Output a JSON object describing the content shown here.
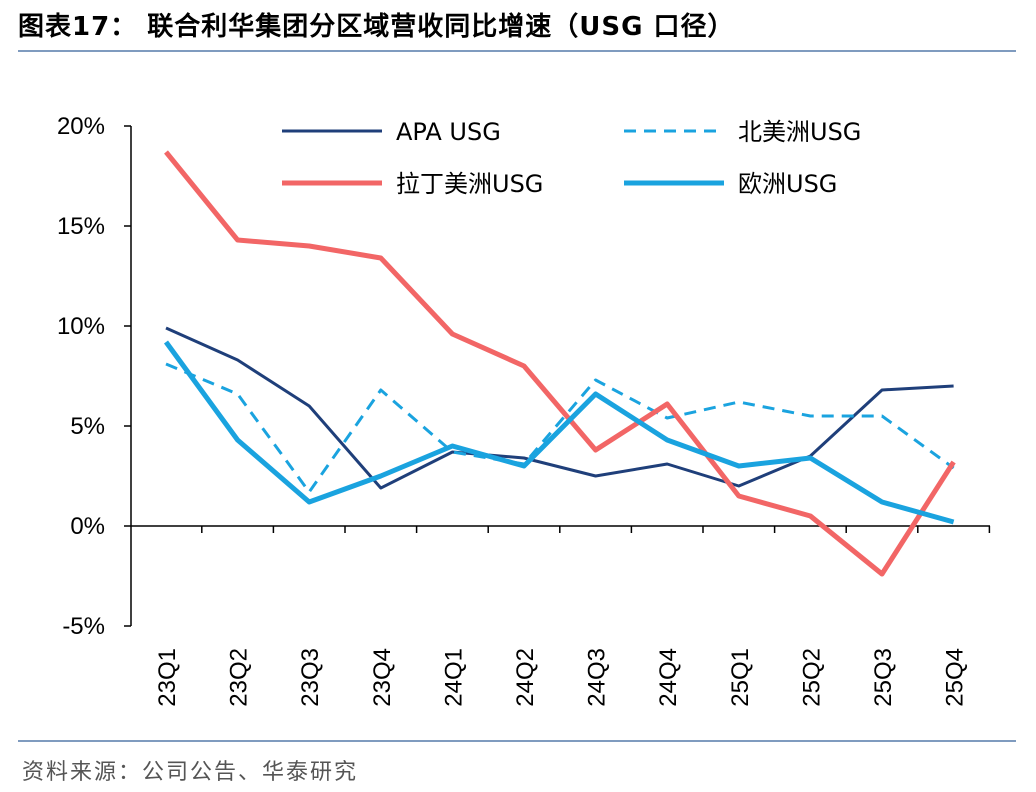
{
  "header": {
    "title": "图表17：  联合利华集团分区域营收同比增速（USG 口径）"
  },
  "footer": {
    "source": "资料来源：公司公告、华泰研究"
  },
  "chart_data": {
    "type": "line",
    "title": "联合利华集团分区域营收同比增速（USG 口径）",
    "xlabel": "",
    "ylabel": "",
    "ylim": [
      -5,
      20
    ],
    "yticks": [
      -5,
      0,
      5,
      10,
      15,
      20
    ],
    "ytick_labels": [
      "-5%",
      "0%",
      "5%",
      "10%",
      "15%",
      "20%"
    ],
    "categories": [
      "23Q1",
      "23Q2",
      "23Q3",
      "23Q4",
      "24Q1",
      "24Q2",
      "24Q3",
      "24Q4",
      "25Q1",
      "25Q2",
      "25Q3",
      "25Q4"
    ],
    "series": [
      {
        "name": "APA USG",
        "color": "#1f3f7a",
        "style": "solid",
        "width": "thin",
        "values": [
          9.9,
          8.3,
          6.0,
          1.9,
          3.7,
          3.4,
          2.5,
          3.1,
          2.0,
          3.5,
          6.8,
          7.0
        ]
      },
      {
        "name": "北美洲USG",
        "color": "#1aa3df",
        "style": "dashed",
        "width": "thin",
        "values": [
          8.1,
          6.6,
          1.7,
          6.8,
          3.7,
          3.1,
          7.3,
          5.4,
          6.2,
          5.5,
          5.5,
          2.9
        ]
      },
      {
        "name": "拉丁美洲USG",
        "color": "#f26666",
        "style": "solid",
        "width": "thick",
        "values": [
          18.7,
          14.3,
          14.0,
          13.4,
          9.6,
          8.0,
          3.8,
          6.1,
          1.5,
          0.5,
          -2.4,
          3.2
        ]
      },
      {
        "name": "欧洲USG",
        "color": "#1aa3df",
        "style": "solid",
        "width": "thick",
        "values": [
          9.2,
          4.3,
          1.2,
          2.5,
          4.0,
          3.0,
          6.6,
          4.3,
          3.0,
          3.4,
          1.2,
          0.2
        ]
      }
    ],
    "legend_position": "top",
    "grid": false
  }
}
